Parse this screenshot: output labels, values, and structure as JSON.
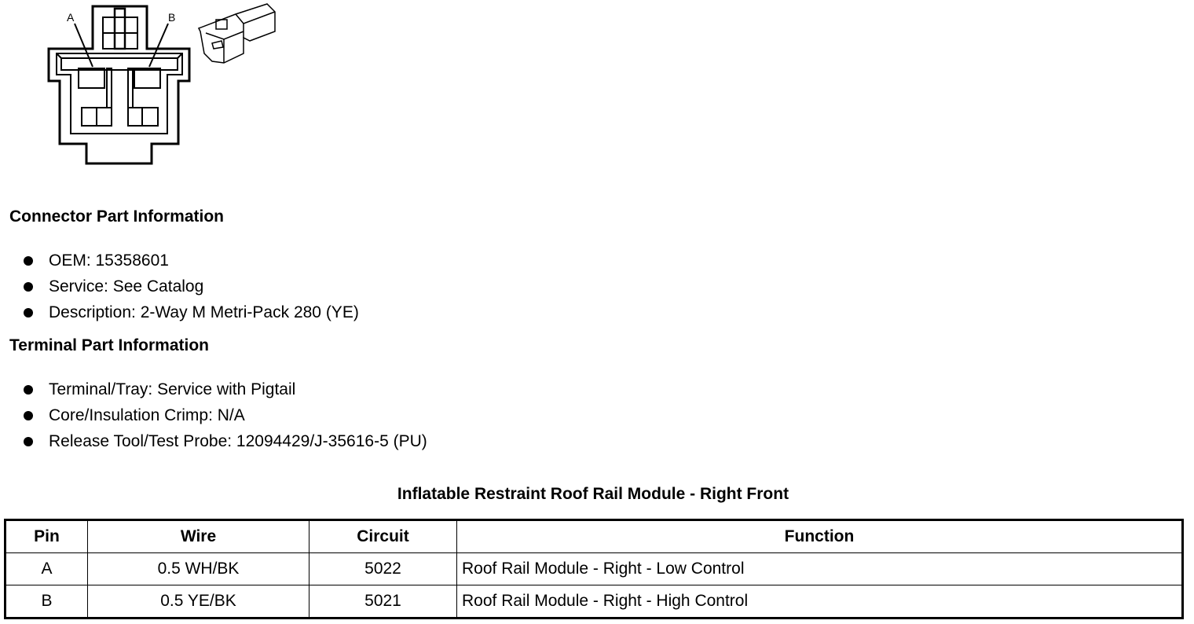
{
  "diagram": {
    "pin_labels": [
      "A",
      "B"
    ]
  },
  "connector_part_information": {
    "heading": "Connector Part Information",
    "items": [
      "OEM: 15358601",
      "Service: See Catalog",
      "Description: 2-Way M Metri-Pack 280 (YE)"
    ]
  },
  "terminal_part_information": {
    "heading": "Terminal Part Information",
    "items": [
      "Terminal/Tray: Service with Pigtail",
      "Core/Insulation Crimp: N/A",
      "Release Tool/Test Probe: 12094429/J-35616-5 (PU)"
    ]
  },
  "pinout_table": {
    "title": "Inflatable Restraint Roof Rail Module - Right Front",
    "headers": [
      "Pin",
      "Wire",
      "Circuit",
      "Function"
    ],
    "rows": [
      [
        "A",
        "0.5 WH/BK",
        "5022",
        "Roof Rail Module - Right - Low Control"
      ],
      [
        "B",
        "0.5 YE/BK",
        "5021",
        "Roof Rail Module - Right - High Control"
      ]
    ]
  }
}
